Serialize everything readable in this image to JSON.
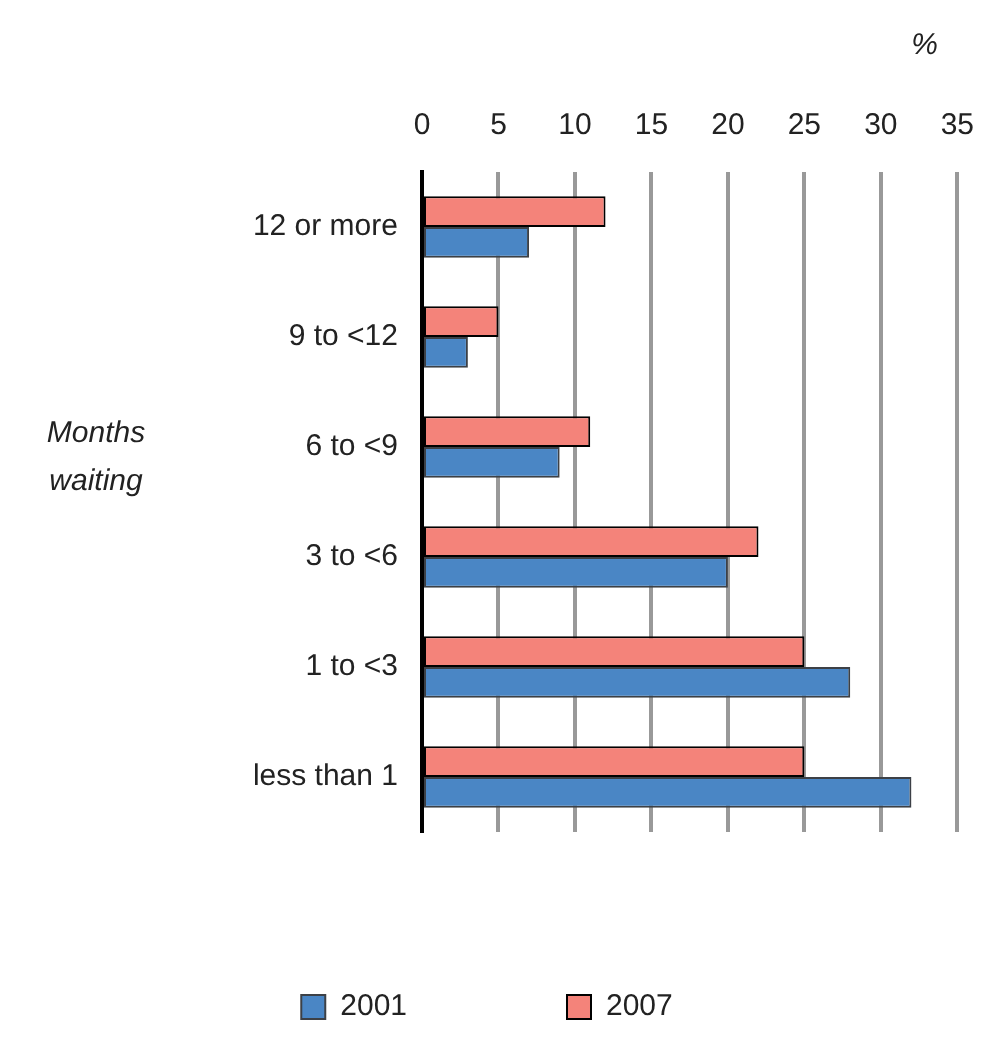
{
  "chart_data": {
    "type": "bar",
    "orientation": "horizontal",
    "xlabel": "%",
    "ylabel": "Months waiting",
    "categories": [
      "12 or more",
      "9 to <12",
      "6 to <9",
      "3 to <6",
      "1 to <3",
      "less than 1"
    ],
    "series": [
      {
        "name": "2001",
        "color": "#4a86c5",
        "values": [
          7,
          3,
          9,
          20,
          28,
          32
        ]
      },
      {
        "name": "2007",
        "color": "#f4837a",
        "values": [
          12,
          5,
          11,
          22,
          25,
          25
        ]
      }
    ],
    "xlim": [
      0,
      35
    ],
    "xticks": [
      0,
      5,
      10,
      15,
      20,
      25,
      30,
      35
    ],
    "grid": "x",
    "legend": "bottom"
  }
}
